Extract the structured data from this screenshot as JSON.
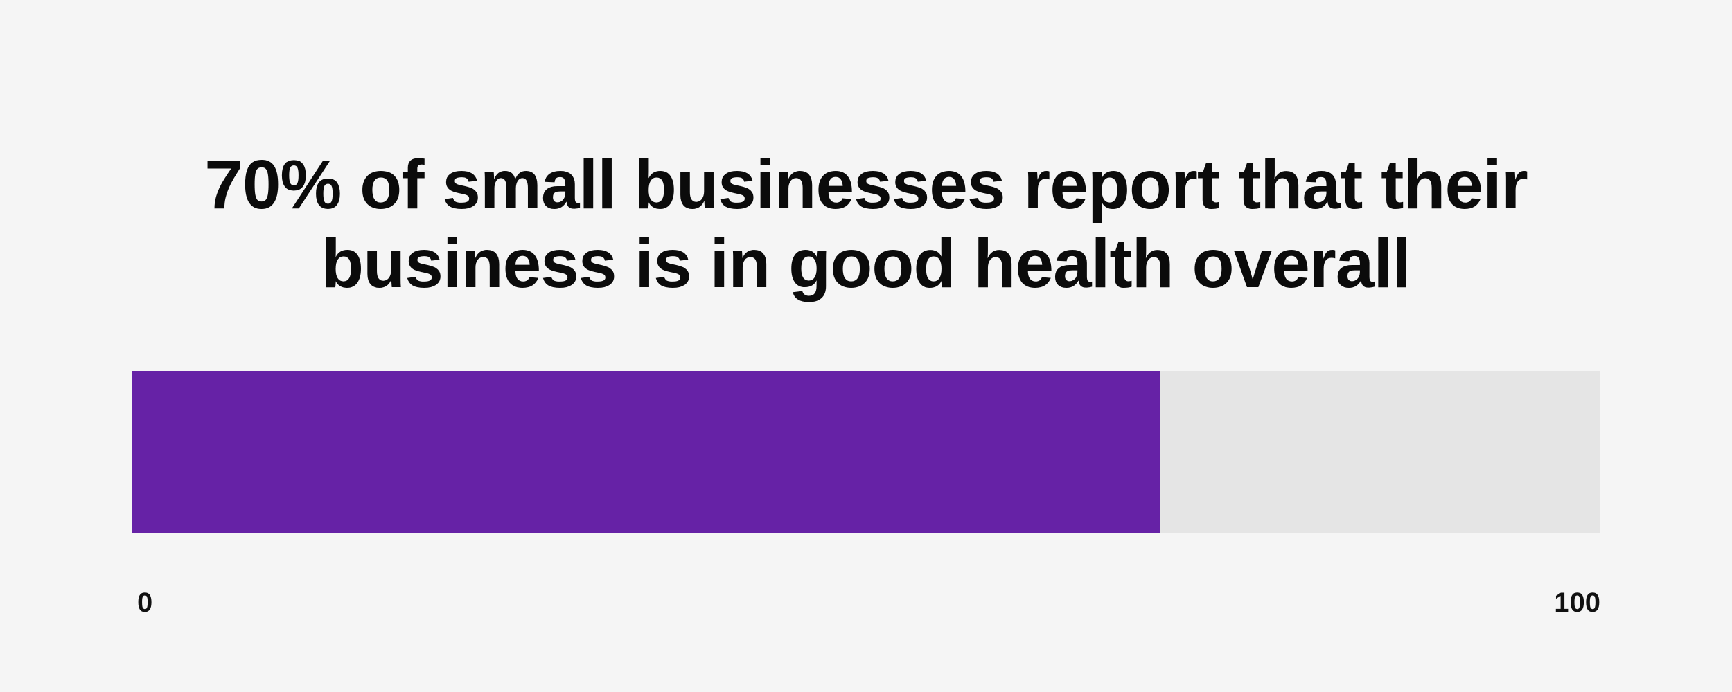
{
  "chart_data": {
    "type": "bar",
    "title_lines": [
      "70% of small businesses report that their",
      "business is in good health overall"
    ],
    "value": 70,
    "xlim": [
      0,
      100
    ],
    "tick_labels": [
      "0",
      "100"
    ],
    "colors": {
      "fill": "#6622a6",
      "track": "#e5e5e5",
      "background": "#f5f5f5"
    }
  }
}
